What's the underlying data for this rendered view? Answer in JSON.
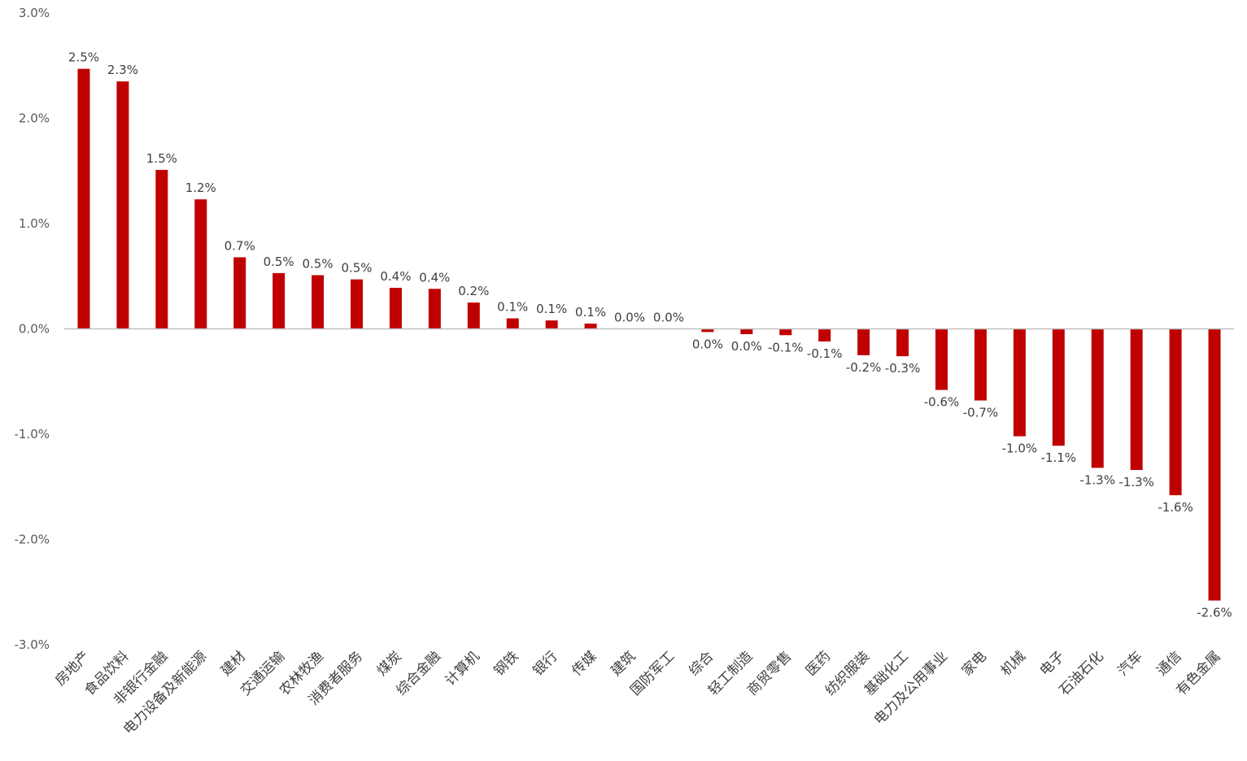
{
  "chart_data": {
    "type": "bar",
    "title": "",
    "xlabel": "",
    "ylabel": "",
    "ylim": [
      -3.0,
      3.0
    ],
    "yticks": [
      "3.0%",
      "2.0%",
      "1.0%",
      "0.0%",
      "-1.0%",
      "-2.0%",
      "-3.0%"
    ],
    "ytick_values": [
      3.0,
      2.0,
      1.0,
      0.0,
      -1.0,
      -2.0,
      -3.0
    ],
    "grid": false,
    "bar_color": "#c00000",
    "categories": [
      "房地产",
      "食品饮料",
      "非银行金融",
      "电力设备及新能源",
      "建材",
      "交通运输",
      "农林牧渔",
      "消费者服务",
      "煤炭",
      "综合金融",
      "计算机",
      "钢铁",
      "银行",
      "传媒",
      "建筑",
      "国防军工",
      "综合",
      "轻工制造",
      "商贸零售",
      "医药",
      "纺织服装",
      "基础化工",
      "电力及公用事业",
      "家电",
      "机械",
      "电子",
      "石油石化",
      "汽车",
      "通信",
      "有色金属"
    ],
    "values": [
      2.47,
      2.35,
      1.51,
      1.23,
      0.68,
      0.53,
      0.51,
      0.47,
      0.39,
      0.38,
      0.25,
      0.1,
      0.08,
      0.05,
      0.0,
      0.0,
      -0.03,
      -0.05,
      -0.06,
      -0.12,
      -0.25,
      -0.26,
      -0.58,
      -0.68,
      -1.02,
      -1.11,
      -1.32,
      -1.34,
      -1.58,
      -2.58
    ],
    "value_labels": [
      "2.5%",
      "2.3%",
      "1.5%",
      "1.2%",
      "0.7%",
      "0.5%",
      "0.5%",
      "0.5%",
      "0.4%",
      "0.4%",
      "0.2%",
      "0.1%",
      "0.1%",
      "0.1%",
      "0.0%",
      "0.0%",
      "0.0%",
      "0.0%",
      "-0.1%",
      "-0.1%",
      "-0.2%",
      "-0.3%",
      "-0.6%",
      "-0.7%",
      "-1.0%",
      "-1.1%",
      "-1.3%",
      "-1.3%",
      "-1.6%",
      "-2.6%"
    ]
  }
}
